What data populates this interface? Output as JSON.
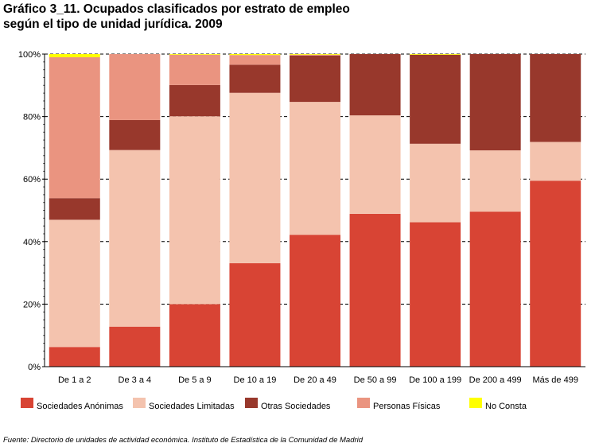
{
  "title": {
    "line1": "Gráfico 3_11. Ocupados clasificados por estrato de empleo",
    "line2": "según el tipo de unidad jurídica. 2009"
  },
  "source": "Fuente: Directorio de unidades de actividad económica. Instituto de Estadística de la Comunidad de Madrid",
  "chart_data": {
    "type": "bar",
    "stacked": true,
    "percent_stacked": true,
    "categories": [
      "De 1 a 2",
      "De 3 a 4",
      "De 5 a 9",
      "De 10 a 19",
      "De 20 a 49",
      "De 50 a 99",
      "De 100 a 199",
      "De 200 a 499",
      "Más de 499"
    ],
    "y_tick_labels": [
      "0%",
      "20%",
      "40%",
      "60%",
      "80%",
      "100%"
    ],
    "ylim": [
      0,
      100
    ],
    "grid": "horizontal dashed",
    "legend_position": "bottom",
    "series": [
      {
        "name": "Sociedades Anónimas",
        "color": "#d84434",
        "values": [
          6.3,
          12.8,
          20.0,
          33.1,
          42.2,
          48.9,
          46.2,
          49.6,
          59.5
        ]
      },
      {
        "name": "Sociedades Limitadas",
        "color": "#f4c3ae",
        "values": [
          40.7,
          56.5,
          60.1,
          54.5,
          42.5,
          31.5,
          25.1,
          19.6,
          12.4
        ]
      },
      {
        "name": "Otras Sociedades",
        "color": "#98382c",
        "values": [
          6.9,
          9.6,
          10.0,
          9.0,
          14.8,
          19.6,
          28.5,
          30.8,
          28.1
        ]
      },
      {
        "name": "Personas Físicas",
        "color": "#ea9480",
        "values": [
          45.1,
          21.1,
          9.7,
          3.1,
          0.3,
          0.0,
          0.0,
          0.0,
          0.0
        ]
      },
      {
        "name": "No Consta",
        "color": "#ffff00",
        "values": [
          1.0,
          0.0,
          0.2,
          0.3,
          0.2,
          0.0,
          0.2,
          0.0,
          0.0
        ]
      }
    ]
  }
}
